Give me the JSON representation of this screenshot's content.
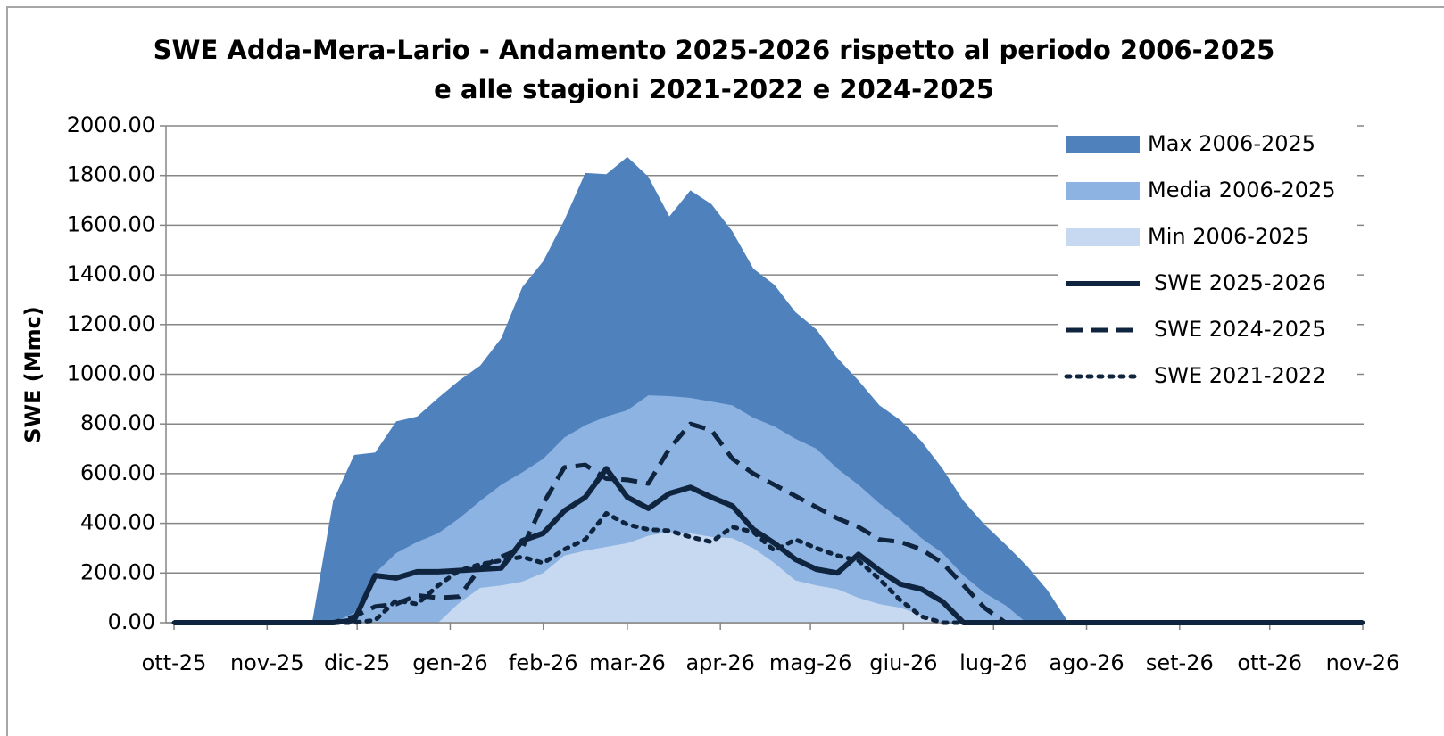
{
  "chart_data": {
    "type": "area-line",
    "title": [
      "SWE Adda-Mera-Lario - Andamento 2025-2026 rispetto al periodo 2006-2025",
      "e alle stagioni 2021-2022 e 2024-2025"
    ],
    "y_label": "SWE (Mmc)",
    "x": [
      0,
      46,
      53,
      60,
      67,
      74,
      81,
      88,
      95,
      102,
      109,
      116,
      123,
      130,
      137,
      144,
      151,
      158,
      165,
      172,
      179,
      186,
      193,
      200,
      207,
      214,
      221,
      228,
      235,
      242,
      249,
      256,
      263,
      270,
      277,
      284,
      291,
      298,
      396
    ],
    "xlim": [
      0,
      396
    ],
    "xticks": [
      {
        "value": 0,
        "label": "ott-25"
      },
      {
        "value": 31,
        "label": "nov-25"
      },
      {
        "value": 61,
        "label": "dic-25"
      },
      {
        "value": 92,
        "label": "gen-26"
      },
      {
        "value": 123,
        "label": "feb-26"
      },
      {
        "value": 151,
        "label": "mar-26"
      },
      {
        "value": 182,
        "label": "apr-26"
      },
      {
        "value": 212,
        "label": "mag-26"
      },
      {
        "value": 243,
        "label": "giu-26"
      },
      {
        "value": 273,
        "label": "lug-26"
      },
      {
        "value": 304,
        "label": "ago-26"
      },
      {
        "value": 335,
        "label": "set-26"
      },
      {
        "value": 365,
        "label": "ott-26"
      },
      {
        "value": 396,
        "label": "nov-26"
      }
    ],
    "ylim": [
      0,
      2000
    ],
    "yticks": [
      {
        "value": 0,
        "label": "0.00"
      },
      {
        "value": 200,
        "label": "200.00"
      },
      {
        "value": 400,
        "label": "400.00"
      },
      {
        "value": 600,
        "label": "600.00"
      },
      {
        "value": 800,
        "label": "800.00"
      },
      {
        "value": 1000,
        "label": "1000.00"
      },
      {
        "value": 1200,
        "label": "1200.00"
      },
      {
        "value": 1400,
        "label": "1400.00"
      },
      {
        "value": 1600,
        "label": "1600.00"
      },
      {
        "value": 1800,
        "label": "1800.00"
      },
      {
        "value": 2000,
        "label": "2000.00"
      }
    ],
    "grid": true,
    "legend": "right",
    "series": [
      {
        "name": "Max 2006-2025",
        "style": "area",
        "color": "#4f81bd",
        "values": [
          0,
          0,
          490,
          675,
          685,
          810,
          830,
          905,
          975,
          1035,
          1145,
          1350,
          1455,
          1620,
          1810,
          1805,
          1875,
          1795,
          1635,
          1740,
          1685,
          1575,
          1425,
          1360,
          1250,
          1180,
          1065,
          975,
          875,
          815,
          730,
          620,
          490,
          395,
          315,
          230,
          130,
          0,
          0
        ]
      },
      {
        "name": "Media 2006-2025",
        "style": "area",
        "color": "#8db3e2",
        "values": [
          0,
          0,
          0,
          40,
          200,
          280,
          325,
          360,
          420,
          490,
          555,
          605,
          660,
          745,
          795,
          830,
          855,
          915,
          912,
          905,
          890,
          875,
          825,
          790,
          740,
          700,
          620,
          555,
          480,
          415,
          340,
          280,
          190,
          120,
          70,
          0,
          0,
          0,
          0
        ]
      },
      {
        "name": "Min 2006-2025",
        "style": "area",
        "color": "#c6d9f1",
        "values": [
          0,
          0,
          0,
          0,
          0,
          0,
          0,
          0,
          80,
          140,
          150,
          165,
          200,
          270,
          290,
          305,
          320,
          350,
          365,
          360,
          345,
          340,
          300,
          240,
          170,
          150,
          135,
          100,
          75,
          60,
          30,
          0,
          0,
          0,
          0,
          0,
          0,
          0,
          0
        ]
      },
      {
        "name": "SWE 2025-2026",
        "style": "solid",
        "color": "#0f243e",
        "values": [
          0,
          0,
          0,
          10,
          190,
          180,
          205,
          205,
          210,
          215,
          220,
          330,
          360,
          450,
          505,
          620,
          505,
          460,
          520,
          545,
          505,
          470,
          375,
          320,
          255,
          215,
          200,
          275,
          210,
          155,
          135,
          85,
          0,
          0,
          0,
          0,
          0,
          0,
          0
        ]
      },
      {
        "name": "SWE 2024-2025",
        "style": "dashed",
        "color": "#0f243e",
        "values": [
          0,
          0,
          0,
          25,
          65,
          75,
          110,
          100,
          105,
          220,
          265,
          300,
          480,
          625,
          635,
          580,
          575,
          560,
          700,
          800,
          775,
          660,
          600,
          555,
          510,
          465,
          420,
          385,
          335,
          325,
          295,
          240,
          150,
          60,
          0,
          0,
          0,
          0,
          0
        ]
      },
      {
        "name": "SWE 2021-2022",
        "style": "dotted",
        "color": "#0f243e",
        "values": [
          0,
          0,
          0,
          0,
          10,
          90,
          75,
          150,
          210,
          235,
          250,
          265,
          240,
          295,
          335,
          440,
          395,
          375,
          370,
          345,
          325,
          385,
          365,
          290,
          335,
          300,
          270,
          250,
          175,
          90,
          25,
          0,
          0,
          0,
          0,
          0,
          0,
          0,
          0
        ]
      }
    ]
  }
}
